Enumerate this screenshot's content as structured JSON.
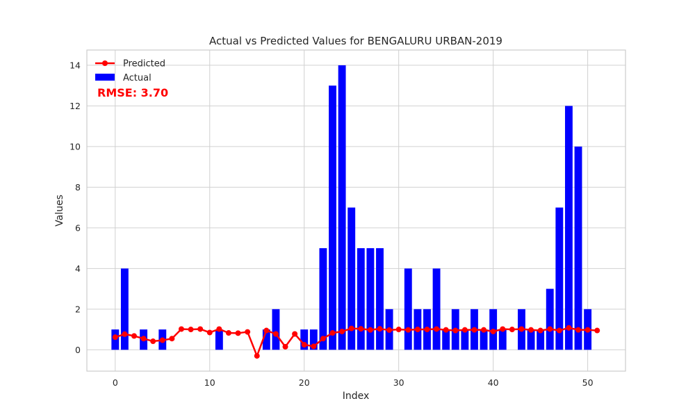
{
  "chart_data": {
    "type": "bar",
    "title": "Actual vs Predicted Values for BENGALURU URBAN-2019",
    "xlabel": "Index",
    "ylabel": "Values",
    "xlim": [
      -3,
      54
    ],
    "ylim": [
      -1.05,
      14.75
    ],
    "x_ticks": [
      0,
      10,
      20,
      30,
      40,
      50
    ],
    "y_ticks": [
      0,
      2,
      4,
      6,
      8,
      10,
      12,
      14
    ],
    "grid": true,
    "legend_position": "top-left",
    "annotation": "RMSE: 3.70",
    "series": [
      {
        "name": "Actual",
        "kind": "bar",
        "color": "#0000ff",
        "x": [
          0,
          1,
          2,
          3,
          4,
          5,
          6,
          7,
          8,
          9,
          10,
          11,
          12,
          13,
          14,
          15,
          16,
          17,
          18,
          19,
          20,
          21,
          22,
          23,
          24,
          25,
          26,
          27,
          28,
          29,
          30,
          31,
          32,
          33,
          34,
          35,
          36,
          37,
          38,
          39,
          40,
          41,
          42,
          43,
          44,
          45,
          46,
          47,
          48,
          49,
          50
        ],
        "values": [
          1,
          4,
          0,
          1,
          0,
          1,
          0,
          0,
          0,
          0,
          0,
          1,
          0,
          0,
          0,
          0,
          1,
          2,
          0,
          0,
          1,
          1,
          5,
          13,
          14,
          7,
          5,
          5,
          5,
          2,
          0,
          4,
          2,
          2,
          4,
          1,
          2,
          1,
          2,
          1,
          2,
          1,
          0,
          2,
          1,
          1,
          3,
          7,
          12,
          10,
          2
        ]
      },
      {
        "name": "Predicted",
        "kind": "line",
        "color": "#ff0000",
        "x": [
          0,
          1,
          2,
          3,
          4,
          5,
          6,
          7,
          8,
          9,
          10,
          11,
          12,
          13,
          14,
          15,
          16,
          17,
          18,
          19,
          20,
          21,
          22,
          23,
          24,
          25,
          26,
          27,
          28,
          29,
          30,
          31,
          32,
          33,
          34,
          35,
          36,
          37,
          38,
          39,
          40,
          41,
          42,
          43,
          44,
          45,
          46,
          47,
          48,
          49,
          50,
          51
        ],
        "values": [
          0.62,
          0.77,
          0.68,
          0.55,
          0.42,
          0.47,
          0.55,
          1.02,
          1.0,
          1.02,
          0.85,
          1.02,
          0.83,
          0.82,
          0.88,
          -0.3,
          0.95,
          0.78,
          0.15,
          0.78,
          0.25,
          0.17,
          0.55,
          0.83,
          0.9,
          1.05,
          1.03,
          0.98,
          1.03,
          0.97,
          1.0,
          0.98,
          1.0,
          1.0,
          1.02,
          0.98,
          0.95,
          0.98,
          0.98,
          0.98,
          0.9,
          1.02,
          1.0,
          1.02,
          0.98,
          0.95,
          1.02,
          0.95,
          1.08,
          0.98,
          0.98,
          0.95
        ]
      }
    ]
  }
}
